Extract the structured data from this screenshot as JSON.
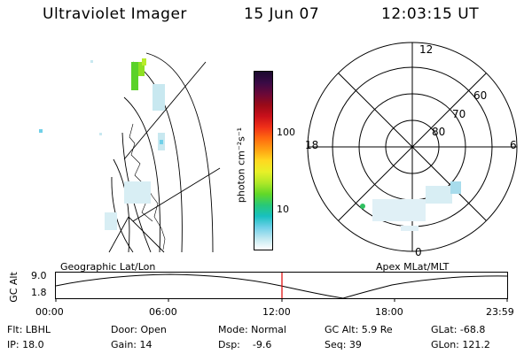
{
  "header": {
    "instrument": "Ultraviolet Imager",
    "date": "15 Jun 07",
    "time": "12:03:15 UT"
  },
  "colorbar": {
    "unit_label": "photon cm⁻²s⁻¹",
    "ticks": [
      "100",
      "10"
    ],
    "colors": [
      "#1b0a2e",
      "#3a0a45",
      "#6a0838",
      "#9a0a18",
      "#c8101a",
      "#f03018",
      "#ff6a10",
      "#ffa012",
      "#ffd820",
      "#e8f028",
      "#b0e828",
      "#62d828",
      "#28c878",
      "#18c0c0",
      "#70d0e8",
      "#c0e8f0",
      "#ffffff"
    ]
  },
  "polar_plot": {
    "mlt_labels": {
      "top": "12",
      "left": "18",
      "right": "6",
      "bottom": "0"
    },
    "lat_labels": [
      "60",
      "70",
      "80"
    ]
  },
  "timeline": {
    "left_title": "Geographic Lat/Lon",
    "right_title": "Apex MLat/MLT",
    "axis_label": "GC Alt",
    "y_ticks": [
      "9.0",
      "1.8"
    ],
    "x_ticks": [
      "00:00",
      "06:00",
      "12:00",
      "18:00",
      "23:59"
    ],
    "marker_color": "#e00000"
  },
  "info": {
    "filter": "Flt: LBHL",
    "ip": "IP: 18.0",
    "door": "Door: Open",
    "gain": "Gain: 14",
    "mode": "Mode: Normal",
    "dsp": "Dsp:    -9.6",
    "gc_alt": "GC Alt: 5.9 Re",
    "seq": "Seq: 39",
    "glat": "GLat: -68.8",
    "glon": "GLon: 121.2"
  }
}
